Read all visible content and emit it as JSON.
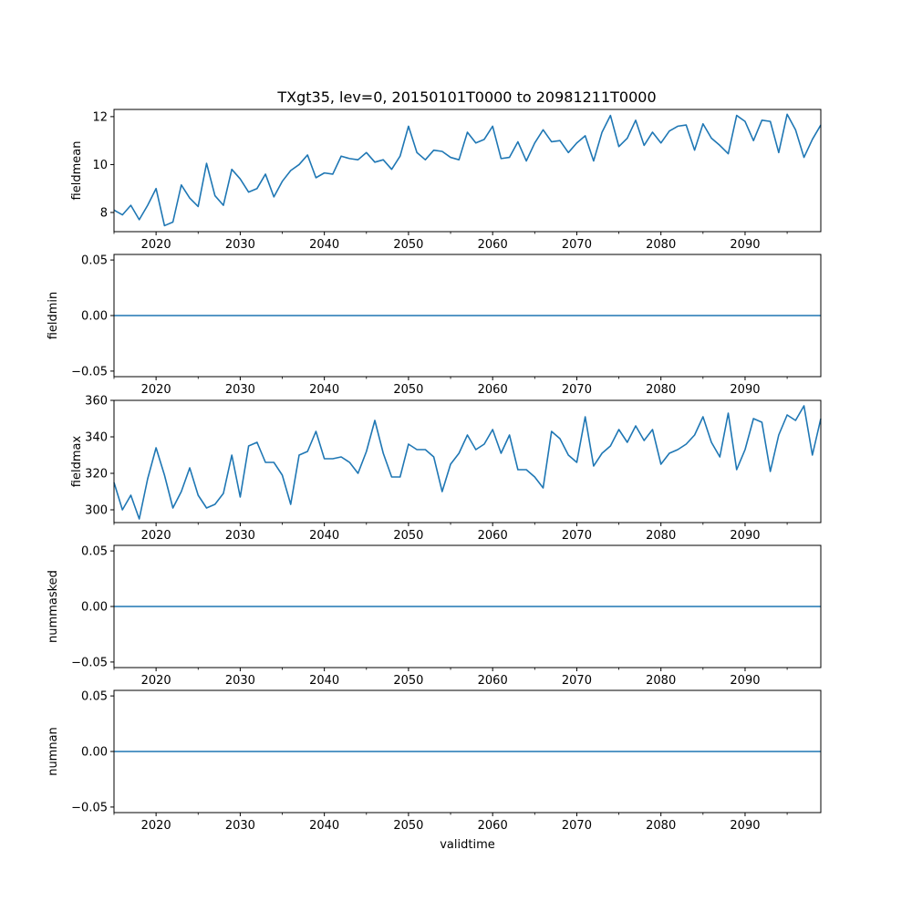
{
  "title": "TXgt35, lev=0, 20150101T0000 to 20981211T0000",
  "chart_data": [
    {
      "type": "line",
      "ylabel": "fieldmean",
      "x": [
        2015,
        2016,
        2017,
        2018,
        2019,
        2020,
        2021,
        2022,
        2023,
        2024,
        2025,
        2026,
        2027,
        2028,
        2029,
        2030,
        2031,
        2032,
        2033,
        2034,
        2035,
        2036,
        2037,
        2038,
        2039,
        2040,
        2041,
        2042,
        2043,
        2044,
        2045,
        2046,
        2047,
        2048,
        2049,
        2050,
        2051,
        2052,
        2053,
        2054,
        2055,
        2056,
        2057,
        2058,
        2059,
        2060,
        2061,
        2062,
        2063,
        2064,
        2065,
        2066,
        2067,
        2068,
        2069,
        2070,
        2071,
        2072,
        2073,
        2074,
        2075,
        2076,
        2077,
        2078,
        2079,
        2080,
        2081,
        2082,
        2083,
        2084,
        2085,
        2086,
        2087,
        2088,
        2089,
        2090,
        2091,
        2092,
        2093,
        2094,
        2095,
        2096,
        2097,
        2098,
        2099
      ],
      "values": [
        8.1,
        7.9,
        8.3,
        7.7,
        8.3,
        9.0,
        7.45,
        7.6,
        9.15,
        8.6,
        8.25,
        10.05,
        8.7,
        8.3,
        9.8,
        9.4,
        8.85,
        9.0,
        9.6,
        8.65,
        9.3,
        9.75,
        10.0,
        10.4,
        9.45,
        9.65,
        9.6,
        10.35,
        10.25,
        10.2,
        10.5,
        10.1,
        10.2,
        9.8,
        10.35,
        11.6,
        10.5,
        10.2,
        10.6,
        10.55,
        10.3,
        10.2,
        11.35,
        10.9,
        11.05,
        11.6,
        10.25,
        10.3,
        10.95,
        10.15,
        10.9,
        11.45,
        10.95,
        11.0,
        10.5,
        10.9,
        11.2,
        10.15,
        11.35,
        12.05,
        10.75,
        11.1,
        11.85,
        10.8,
        11.35,
        10.9,
        11.4,
        11.6,
        11.65,
        10.6,
        11.7,
        11.1,
        10.8,
        10.45,
        12.05,
        11.8,
        11.0,
        11.85,
        11.8,
        10.5,
        12.1,
        11.45,
        10.3,
        11.05,
        11.65
      ],
      "xlim": [
        2015,
        2099
      ],
      "ylim": [
        7.2,
        12.3
      ],
      "yticks": [
        {
          "value": 8,
          "label": "8"
        },
        {
          "value": 10,
          "label": "10"
        },
        {
          "value": 12,
          "label": "12"
        }
      ],
      "xticks": [
        {
          "value": 2020,
          "label": "2020"
        },
        {
          "value": 2030,
          "label": "2030"
        },
        {
          "value": 2040,
          "label": "2040"
        },
        {
          "value": 2050,
          "label": "2050"
        },
        {
          "value": 2060,
          "label": "2060"
        },
        {
          "value": 2070,
          "label": "2070"
        },
        {
          "value": 2080,
          "label": "2080"
        },
        {
          "value": 2090,
          "label": "2090"
        }
      ]
    },
    {
      "type": "line",
      "ylabel": "fieldmin",
      "x": [
        2015,
        2099
      ],
      "values": [
        0,
        0
      ],
      "xlim": [
        2015,
        2099
      ],
      "ylim": [
        -0.055,
        0.055
      ],
      "yticks": [
        {
          "value": 0.05,
          "label": "0.05"
        },
        {
          "value": 0,
          "label": "0.00"
        },
        {
          "value": -0.05,
          "label": "−0.05"
        }
      ],
      "xticks": [
        {
          "value": 2020,
          "label": "2020"
        },
        {
          "value": 2030,
          "label": "2030"
        },
        {
          "value": 2040,
          "label": "2040"
        },
        {
          "value": 2050,
          "label": "2050"
        },
        {
          "value": 2060,
          "label": "2060"
        },
        {
          "value": 2070,
          "label": "2070"
        },
        {
          "value": 2080,
          "label": "2080"
        },
        {
          "value": 2090,
          "label": "2090"
        }
      ]
    },
    {
      "type": "line",
      "ylabel": "fieldmax",
      "x": [
        2015,
        2016,
        2017,
        2018,
        2019,
        2020,
        2021,
        2022,
        2023,
        2024,
        2025,
        2026,
        2027,
        2028,
        2029,
        2030,
        2031,
        2032,
        2033,
        2034,
        2035,
        2036,
        2037,
        2038,
        2039,
        2040,
        2041,
        2042,
        2043,
        2044,
        2045,
        2046,
        2047,
        2048,
        2049,
        2050,
        2051,
        2052,
        2053,
        2054,
        2055,
        2056,
        2057,
        2058,
        2059,
        2060,
        2061,
        2062,
        2063,
        2064,
        2065,
        2066,
        2067,
        2068,
        2069,
        2070,
        2071,
        2072,
        2073,
        2074,
        2075,
        2076,
        2077,
        2078,
        2079,
        2080,
        2081,
        2082,
        2083,
        2084,
        2085,
        2086,
        2087,
        2088,
        2089,
        2090,
        2091,
        2092,
        2093,
        2094,
        2095,
        2096,
        2097,
        2098,
        2099
      ],
      "values": [
        315,
        300,
        308,
        295,
        317,
        334,
        319,
        301,
        310,
        323,
        308,
        301,
        303,
        309,
        330,
        307,
        335,
        337,
        326,
        326,
        319,
        303,
        330,
        332,
        343,
        328,
        328,
        329,
        326,
        320,
        332,
        349,
        331,
        318,
        318,
        336,
        333,
        333,
        329,
        310,
        325,
        331,
        341,
        333,
        336,
        344,
        331,
        341,
        322,
        322,
        318,
        312,
        343,
        339,
        330,
        326,
        351,
        324,
        331,
        335,
        344,
        337,
        346,
        338,
        344,
        325,
        331,
        333,
        336,
        341,
        351,
        337,
        329,
        353,
        322,
        333,
        350,
        348,
        321,
        341,
        352,
        349,
        357,
        330,
        350
      ],
      "xlim": [
        2015,
        2099
      ],
      "ylim": [
        293,
        360
      ],
      "yticks": [
        {
          "value": 300,
          "label": "300"
        },
        {
          "value": 320,
          "label": "320"
        },
        {
          "value": 340,
          "label": "340"
        },
        {
          "value": 360,
          "label": "360"
        }
      ],
      "xticks": [
        {
          "value": 2020,
          "label": "2020"
        },
        {
          "value": 2030,
          "label": "2030"
        },
        {
          "value": 2040,
          "label": "2040"
        },
        {
          "value": 2050,
          "label": "2050"
        },
        {
          "value": 2060,
          "label": "2060"
        },
        {
          "value": 2070,
          "label": "2070"
        },
        {
          "value": 2080,
          "label": "2080"
        },
        {
          "value": 2090,
          "label": "2090"
        }
      ]
    },
    {
      "type": "line",
      "ylabel": "nummasked",
      "x": [
        2015,
        2099
      ],
      "values": [
        0,
        0
      ],
      "xlim": [
        2015,
        2099
      ],
      "ylim": [
        -0.055,
        0.055
      ],
      "yticks": [
        {
          "value": 0.05,
          "label": "0.05"
        },
        {
          "value": 0,
          "label": "0.00"
        },
        {
          "value": -0.05,
          "label": "−0.05"
        }
      ],
      "xticks": [
        {
          "value": 2020,
          "label": "2020"
        },
        {
          "value": 2030,
          "label": "2030"
        },
        {
          "value": 2040,
          "label": "2040"
        },
        {
          "value": 2050,
          "label": "2050"
        },
        {
          "value": 2060,
          "label": "2060"
        },
        {
          "value": 2070,
          "label": "2070"
        },
        {
          "value": 2080,
          "label": "2080"
        },
        {
          "value": 2090,
          "label": "2090"
        }
      ]
    },
    {
      "type": "line",
      "ylabel": "numnan",
      "xlabel": "validtime",
      "x": [
        2015,
        2099
      ],
      "values": [
        0,
        0
      ],
      "xlim": [
        2015,
        2099
      ],
      "ylim": [
        -0.055,
        0.055
      ],
      "yticks": [
        {
          "value": 0.05,
          "label": "0.05"
        },
        {
          "value": 0,
          "label": "0.00"
        },
        {
          "value": -0.05,
          "label": "−0.05"
        }
      ],
      "xticks": [
        {
          "value": 2020,
          "label": "2020"
        },
        {
          "value": 2030,
          "label": "2030"
        },
        {
          "value": 2040,
          "label": "2040"
        },
        {
          "value": 2050,
          "label": "2050"
        },
        {
          "value": 2060,
          "label": "2060"
        },
        {
          "value": 2070,
          "label": "2070"
        },
        {
          "value": 2080,
          "label": "2080"
        },
        {
          "value": 2090,
          "label": "2090"
        }
      ]
    }
  ],
  "colors": {
    "series": "#1f77b4",
    "axis": "#000000",
    "background": "#ffffff"
  }
}
